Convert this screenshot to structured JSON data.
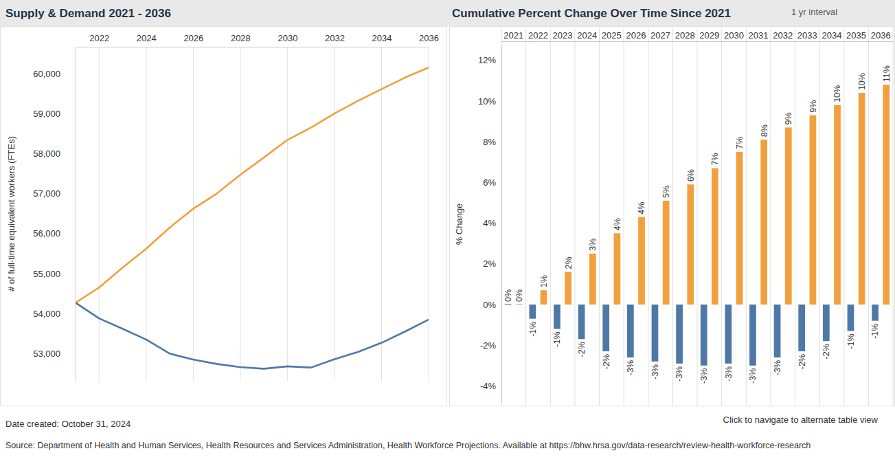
{
  "chart_data": [
    {
      "type": "line",
      "title": "Supply & Demand 2021 - 2036",
      "y_label": "# of full-time equivalent workers (FTEs)",
      "x": [
        2021,
        2022,
        2023,
        2024,
        2025,
        2026,
        2027,
        2028,
        2029,
        2030,
        2031,
        2032,
        2033,
        2034,
        2035,
        2036
      ],
      "xlim": [
        2021,
        2036
      ],
      "xticks": [
        2022,
        2024,
        2026,
        2028,
        2030,
        2032,
        2034,
        2036
      ],
      "ylim": [
        52300,
        60670
      ],
      "yticks": [
        {
          "value": 53000,
          "label": "53,000"
        },
        {
          "value": 54000,
          "label": "54,000"
        },
        {
          "value": 55000,
          "label": "55,000"
        },
        {
          "value": 56000,
          "label": "56,000"
        },
        {
          "value": 57000,
          "label": "57,000"
        },
        {
          "value": 58000,
          "label": "58,000"
        },
        {
          "value": 59000,
          "label": "59,000"
        },
        {
          "value": 60000,
          "label": "60,000"
        }
      ],
      "grid": true,
      "series": [
        {
          "color": "#f2a03d",
          "values": [
            54270,
            54650,
            55150,
            55620,
            56150,
            56620,
            57000,
            57470,
            57900,
            58340,
            58650,
            59000,
            59320,
            59610,
            59900,
            60150
          ]
        },
        {
          "color": "#4e79a7",
          "values": [
            54270,
            53880,
            53620,
            53350,
            53000,
            52850,
            52740,
            52660,
            52620,
            52680,
            52650,
            52860,
            53040,
            53270,
            53550,
            53850
          ]
        }
      ]
    },
    {
      "type": "bar",
      "title": "Cumulative Percent Change Over Time Since 2021",
      "subtitle": "1 yr interval",
      "y_label": "% Change",
      "categories": [
        "2021",
        "2022",
        "2023",
        "2024",
        "2025",
        "2026",
        "2027",
        "2028",
        "2029",
        "2030",
        "2031",
        "2032",
        "2033",
        "2034",
        "2035",
        "2036"
      ],
      "ylim": [
        -4.8,
        12.7
      ],
      "yticks": [
        {
          "value": -4,
          "label": "-4%"
        },
        {
          "value": -2,
          "label": "-2%"
        },
        {
          "value": 0,
          "label": "0%"
        },
        {
          "value": 2,
          "label": "2%"
        },
        {
          "value": 4,
          "label": "4%"
        },
        {
          "value": 6,
          "label": "6%"
        },
        {
          "value": 8,
          "label": "8%"
        },
        {
          "value": 10,
          "label": "10%"
        },
        {
          "value": 12,
          "label": "12%"
        }
      ],
      "data_labels": true,
      "series": [
        {
          "color": "#4e79a7",
          "values": [
            0,
            -0.7,
            -1.2,
            -1.7,
            -2.3,
            -2.6,
            -2.8,
            -2.9,
            -3.0,
            -2.9,
            -3.0,
            -2.6,
            -2.3,
            -1.8,
            -1.3,
            -0.8
          ],
          "value_labels": [
            "0%",
            "-1%",
            "-1%",
            "-2%",
            "-2%",
            "-3%",
            "-3%",
            "-3%",
            "-3%",
            "-3%",
            "-3%",
            "-3%",
            "-2%",
            "-2%",
            "-1%",
            "-1%"
          ]
        },
        {
          "color": "#f2a03d",
          "values": [
            0,
            0.7,
            1.6,
            2.5,
            3.5,
            4.3,
            5.1,
            5.9,
            6.7,
            7.5,
            8.1,
            8.7,
            9.3,
            9.8,
            10.4,
            10.8
          ],
          "value_labels": [
            "0%",
            "1%",
            "2%",
            "3%",
            "4%",
            "4%",
            "5%",
            "6%",
            "7%",
            "7%",
            "8%",
            "9%",
            "9%",
            "10%",
            "10%",
            "11%"
          ]
        }
      ]
    }
  ],
  "footer": {
    "date_created": "Date created: October 31, 2024",
    "link": "Click to navigate to alternate table view",
    "source": "Source: Department of Health and Human Services, Health Resources and Services Administration, Health Workforce Projections. Available at https://bhw.hrsa.gov/data-research/review-health-workforce-research"
  }
}
